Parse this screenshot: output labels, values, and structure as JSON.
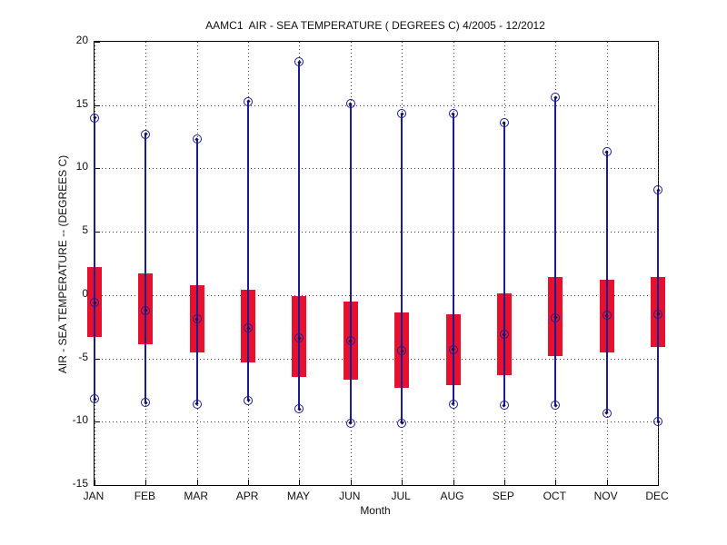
{
  "figure": {
    "background": "#ffffff"
  },
  "chart_data": {
    "type": "boxplot",
    "title": "AAMC1  AIR - SEA TEMPERATURE ( DEGREES C) 4/2005 - 12/2012",
    "xlabel": "Month",
    "ylabel": "AIR - SEA TEMPERATURE -- (DEGREES C)",
    "ylim": [
      -15,
      20
    ],
    "yticks": [
      20,
      15,
      10,
      5,
      0,
      -5,
      -10,
      -15
    ],
    "grid": "dotted-both-axes",
    "legend": "none",
    "categories": [
      "JAN",
      "FEB",
      "MAR",
      "APR",
      "MAY",
      "JUN",
      "JUL",
      "AUG",
      "SEP",
      "OCT",
      "NOV",
      "DEC"
    ],
    "series": [
      {
        "month": "JAN",
        "max": 14.0,
        "q3": 2.2,
        "median": -0.6,
        "q1": -3.3,
        "min": -8.2
      },
      {
        "month": "FEB",
        "max": 12.7,
        "q3": 1.7,
        "median": -1.2,
        "q1": -3.9,
        "min": -8.5
      },
      {
        "month": "MAR",
        "max": 12.3,
        "q3": 0.8,
        "median": -1.9,
        "q1": -4.5,
        "min": -8.6
      },
      {
        "month": "APR",
        "max": 15.3,
        "q3": 0.4,
        "median": -2.6,
        "q1": -5.3,
        "min": -8.3
      },
      {
        "month": "MAY",
        "max": 18.4,
        "q3": -0.1,
        "median": -3.4,
        "q1": -6.5,
        "min": -9.0
      },
      {
        "month": "JUN",
        "max": 15.1,
        "q3": -0.5,
        "median": -3.6,
        "q1": -6.7,
        "min": -10.1
      },
      {
        "month": "JUL",
        "max": 14.3,
        "q3": -1.4,
        "median": -4.4,
        "q1": -7.3,
        "min": -10.1
      },
      {
        "month": "AUG",
        "max": 14.3,
        "q3": -1.5,
        "median": -4.3,
        "q1": -7.1,
        "min": -8.6
      },
      {
        "month": "SEP",
        "max": 13.6,
        "q3": 0.1,
        "median": -3.1,
        "q1": -6.3,
        "min": -8.7
      },
      {
        "month": "OCT",
        "max": 15.6,
        "q3": 1.4,
        "median": -1.8,
        "q1": -4.8,
        "min": -8.7
      },
      {
        "month": "NOV",
        "max": 11.3,
        "q3": 1.2,
        "median": -1.6,
        "q1": -4.5,
        "min": -9.3
      },
      {
        "month": "DEC",
        "max": 8.3,
        "q3": 1.4,
        "median": -1.5,
        "q1": -4.1,
        "min": -10.0
      }
    ],
    "colors": {
      "box": "#e8112d",
      "stem": "#1c1c96",
      "marker_ring": "#1c1c96",
      "marker_dot": "#15154f",
      "grid": "#3a3a3a",
      "axis": "#000000",
      "text": "#111111"
    }
  }
}
